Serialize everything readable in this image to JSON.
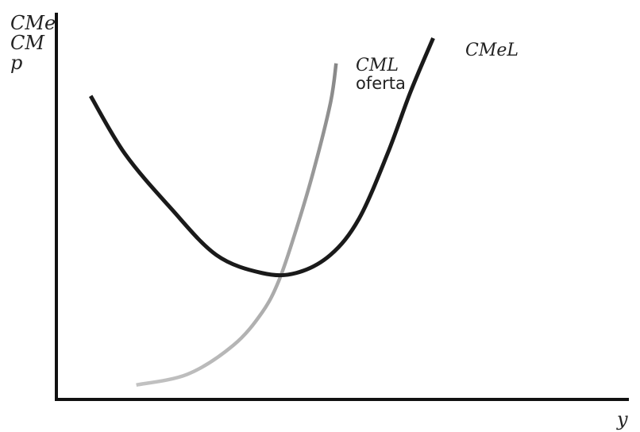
{
  "chart_data": {
    "type": "line",
    "title": "",
    "ylabel": [
      "CMe",
      "CM",
      "p"
    ],
    "xlabel": "y",
    "axis_ticks": false,
    "grid": false,
    "series": [
      {
        "name": "CMeL",
        "color": "#1a1a1a",
        "points": [
          [
            0.06,
            0.84
          ],
          [
            0.12,
            0.68
          ],
          [
            0.2,
            0.53
          ],
          [
            0.28,
            0.4
          ],
          [
            0.36,
            0.35
          ],
          [
            0.42,
            0.35
          ],
          [
            0.48,
            0.4
          ],
          [
            0.53,
            0.5
          ],
          [
            0.58,
            0.68
          ],
          [
            0.62,
            0.85
          ],
          [
            0.66,
            1.0
          ]
        ]
      },
      {
        "name": "CML",
        "color": "#888888",
        "color_lower": "#c2c2c2",
        "annotation": "oferta",
        "points": [
          [
            0.14,
            0.04
          ],
          [
            0.23,
            0.07
          ],
          [
            0.31,
            0.15
          ],
          [
            0.36,
            0.24
          ],
          [
            0.39,
            0.33
          ],
          [
            0.42,
            0.47
          ],
          [
            0.45,
            0.63
          ],
          [
            0.48,
            0.82
          ],
          [
            0.49,
            0.93
          ]
        ]
      }
    ]
  }
}
